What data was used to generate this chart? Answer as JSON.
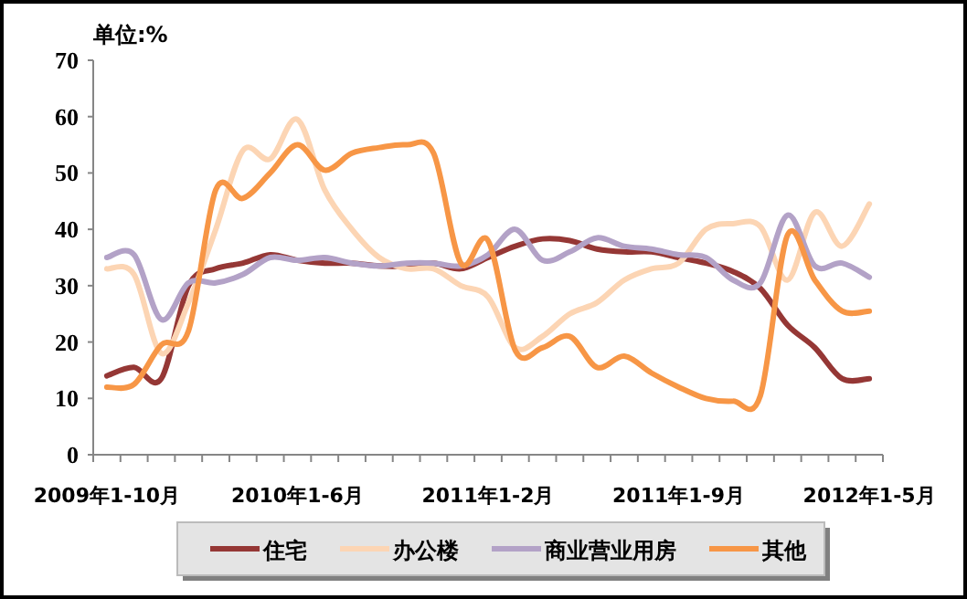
{
  "chart_data": {
    "type": "line",
    "ylabel": "单位:%",
    "categories": [
      "2009年1-10月",
      null,
      null,
      null,
      null,
      null,
      null,
      "2010年1-6月",
      null,
      null,
      null,
      null,
      null,
      null,
      "2011年1-2月",
      null,
      null,
      null,
      null,
      null,
      null,
      "2011年1-9月",
      null,
      null,
      null,
      null,
      null,
      null,
      "2012年1-5月"
    ],
    "series": [
      {
        "name": "住宅",
        "color": "#953735",
        "values": [
          14,
          15.5,
          13.5,
          30,
          33,
          34,
          35.5,
          34.5,
          34,
          34,
          33.5,
          33.5,
          34,
          33,
          35,
          37,
          38.3,
          38,
          36.5,
          36,
          36,
          35,
          34,
          32.5,
          29.5,
          23,
          19,
          13.5,
          13.5
        ]
      },
      {
        "name": "办公楼",
        "color": "#fcd5b4",
        "values": [
          33,
          32,
          18,
          27,
          40,
          54,
          52.5,
          59.5,
          47,
          40,
          35,
          33,
          33,
          30,
          28,
          19,
          21,
          25,
          27,
          31,
          33,
          34,
          40,
          41,
          40.5,
          31,
          43,
          37,
          44.5
        ]
      },
      {
        "name": "商业营业用房",
        "color": "#b3a2c7",
        "values": [
          35,
          35.5,
          24,
          30.5,
          30.5,
          32,
          35,
          34.5,
          35,
          34,
          33.5,
          34,
          34,
          33.5,
          35.5,
          40,
          34.5,
          36,
          38.5,
          37,
          36.5,
          35.5,
          35,
          31,
          30.5,
          42.5,
          33.5,
          34,
          31.5
        ]
      },
      {
        "name": "其他",
        "color": "#f79646",
        "values": [
          12,
          12.5,
          19.5,
          22,
          47,
          45.5,
          50,
          55,
          50.5,
          53.5,
          54.5,
          55,
          53.5,
          34,
          38,
          18.5,
          19,
          21,
          15.5,
          17.5,
          14.5,
          12,
          10,
          9.5,
          10.5,
          39,
          31,
          25.5,
          25.5
        ]
      }
    ],
    "ylim": [
      0,
      70
    ],
    "yticks": [
      0,
      10,
      20,
      30,
      40,
      50,
      60,
      70
    ],
    "grid": false,
    "legend": "bottom"
  }
}
